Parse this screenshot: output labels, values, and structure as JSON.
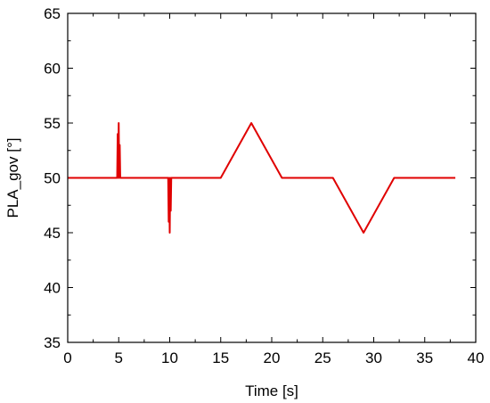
{
  "chart_data": {
    "type": "line",
    "xlabel": "Time [s]",
    "ylabel": "PLA_gov [°]",
    "xlim": [
      0,
      40
    ],
    "ylim": [
      35,
      65
    ],
    "xticks": [
      0,
      5,
      10,
      15,
      20,
      25,
      30,
      35,
      40
    ],
    "yticks": [
      35,
      40,
      45,
      50,
      55,
      60,
      65
    ],
    "xtick_labels": [
      "0",
      "5",
      "10",
      "15",
      "20",
      "25",
      "30",
      "35",
      "40"
    ],
    "ytick_labels": [
      "35",
      "40",
      "45",
      "50",
      "55",
      "60",
      "65"
    ],
    "x_minor_step": 2.5,
    "y_minor_step": 2.5,
    "grid": false,
    "series": [
      {
        "color": "#e00000",
        "x": [
          0,
          4.85,
          4.9,
          4.95,
          5.0,
          5.05,
          5.1,
          5.15,
          9.85,
          9.9,
          9.95,
          10.0,
          10.05,
          10.1,
          10.15,
          15,
          18,
          21,
          26,
          29,
          32,
          38
        ],
        "y": [
          50,
          50,
          54,
          50,
          55,
          50,
          53,
          50,
          50,
          46,
          50,
          45,
          50,
          47,
          50,
          50,
          55,
          50,
          50,
          45,
          50,
          50
        ]
      }
    ]
  }
}
